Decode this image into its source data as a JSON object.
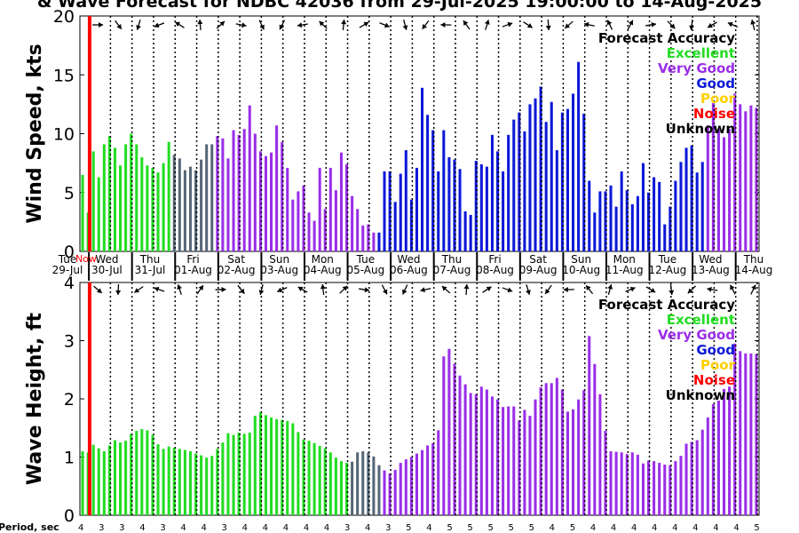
{
  "title": "& Wave Forecast for NDBC 42036 from 29-Jul-2025 19:00:00 to 14-Aug-2025",
  "period_label": "Period, sec",
  "legend": {
    "title": "Forecast Accuracy",
    "items": [
      {
        "label": "Excellent",
        "color": "#22dd22"
      },
      {
        "label": "Very Good",
        "color": "#9a2ee8"
      },
      {
        "label": "Good",
        "color": "#0b18d8"
      },
      {
        "label": "Poor",
        "color": "#ffd000"
      },
      {
        "label": "Noise",
        "color": "#ff0000"
      },
      {
        "label": "Unknown",
        "color": "#000000"
      }
    ]
  },
  "days": [
    {
      "dow": "Tue",
      "date": "29-Jul"
    },
    {
      "dow": "Wed",
      "date": "30-Jul"
    },
    {
      "dow": "Thu",
      "date": "31-Jul"
    },
    {
      "dow": "Fri",
      "date": "01-Aug"
    },
    {
      "dow": "Sat",
      "date": "02-Aug"
    },
    {
      "dow": "Sun",
      "date": "03-Aug"
    },
    {
      "dow": "Mon",
      "date": "04-Aug"
    },
    {
      "dow": "Tue",
      "date": "05-Aug"
    },
    {
      "dow": "Wed",
      "date": "06-Aug"
    },
    {
      "dow": "Thu",
      "date": "07-Aug"
    },
    {
      "dow": "Fri",
      "date": "08-Aug"
    },
    {
      "dow": "Sat",
      "date": "09-Aug"
    },
    {
      "dow": "Sun",
      "date": "10-Aug"
    },
    {
      "dow": "Mon",
      "date": "11-Aug"
    },
    {
      "dow": "Tue",
      "date": "12-Aug"
    },
    {
      "dow": "Wed",
      "date": "13-Aug"
    },
    {
      "dow": "Thu",
      "date": "14-Aug"
    }
  ],
  "now_label": "Now",
  "periods": [
    "4",
    "3",
    "3",
    "4",
    "3",
    "4",
    "4",
    "3",
    "4",
    "4",
    "4",
    "4",
    "4",
    "3",
    "4",
    "3",
    "5",
    "4",
    "5",
    "5",
    "5",
    "5",
    "5",
    "4",
    "5",
    "4",
    "4",
    "4",
    "4",
    "4",
    "4",
    "4",
    "4",
    "5"
  ],
  "chart_data": [
    {
      "type": "bar",
      "ylabel": "Wind Speed, kts",
      "ylim": [
        0,
        20
      ],
      "yticks": [
        "0",
        "5",
        "10",
        "15",
        "20"
      ],
      "x": "3-hourly steps from 29-Jul 19:00",
      "values": [
        6.5,
        3.3,
        8.5,
        6.3,
        9.1,
        9.8,
        8.8,
        7.3,
        9.1,
        10,
        9.1,
        8,
        7.3,
        7.1,
        6.7,
        7.5,
        9.3,
        8.2,
        7.9,
        6.9,
        7.2,
        6.9,
        7.8,
        9.1,
        9.1,
        9.8,
        9.6,
        7.9,
        10.3,
        9.9,
        10.4,
        12.4,
        10,
        8.5,
        8.1,
        8.4,
        10.7,
        9.3,
        7.1,
        4.4,
        5.1,
        5.6,
        3.3,
        2.6,
        7.1,
        3.6,
        7.1,
        5.2,
        8.4,
        7.4,
        4.7,
        3.6,
        2.2,
        2.3,
        1.6,
        1.6,
        6.8,
        6.8,
        4.2,
        6.6,
        8.6,
        4.4,
        7.1,
        13.9,
        11.6,
        10.3,
        6.8,
        10.3,
        8,
        7.8,
        7,
        3.4,
        3.1,
        7.7,
        7.4,
        7.2,
        9.9,
        8.5,
        6.8,
        9.9,
        11.2,
        11.8,
        10.2,
        12.5,
        13,
        14,
        11,
        12.7,
        8.6,
        11.8,
        12.1,
        13.4,
        16.1,
        11.7,
        6,
        3.3,
        5.1,
        5.1,
        5.6,
        3.8,
        6.8,
        5.2,
        4,
        4.7,
        7.5,
        5,
        6.3,
        5.9,
        2.3,
        3.8,
        6,
        7.6,
        8.8,
        9,
        6.7,
        7.6,
        10.7,
        12.6,
        10.4,
        9.7,
        10.4,
        13.4,
        12.5,
        11.9,
        12.4,
        12.2
      ],
      "colors_by_index": [
        [
          0,
          16,
          "Excellent"
        ],
        [
          17,
          24,
          "Unknown"
        ],
        [
          25,
          54,
          "Very Good"
        ],
        [
          55,
          115,
          "Good"
        ],
        [
          116,
          125,
          "Very Good"
        ]
      ]
    },
    {
      "type": "bar",
      "ylabel": "Wave Height, ft",
      "ylim": [
        0,
        4
      ],
      "yticks": [
        "0",
        "1",
        "2",
        "3",
        "4"
      ],
      "x": "3-hourly steps from 29-Jul 19:00",
      "values": [
        1.1,
        1.08,
        1.21,
        1.15,
        1.1,
        1.2,
        1.29,
        1.25,
        1.28,
        1.4,
        1.45,
        1.48,
        1.46,
        1.38,
        1.22,
        1.14,
        1.18,
        1.16,
        1.14,
        1.12,
        1.1,
        1.06,
        1.03,
        0.99,
        1.02,
        1.14,
        1.25,
        1.41,
        1.38,
        1.42,
        1.4,
        1.42,
        1.71,
        1.77,
        1.72,
        1.68,
        1.65,
        1.64,
        1.62,
        1.58,
        1.43,
        1.3,
        1.28,
        1.24,
        1.19,
        1.15,
        1.08,
        0.99,
        0.93,
        0.9,
        0.92,
        1.08,
        1.1,
        1.08,
        1.01,
        0.86,
        0.77,
        0.72,
        0.78,
        0.9,
        0.96,
        1,
        1.06,
        1.12,
        1.2,
        1.24,
        1.46,
        2.73,
        2.86,
        2.6,
        2.4,
        2.25,
        2.1,
        2.08,
        2.21,
        2.16,
        2.04,
        1.99,
        1.86,
        1.87,
        1.87,
        1.63,
        1.81,
        1.71,
        1.99,
        2.2,
        2.27,
        2.27,
        2.36,
        2.16,
        1.78,
        1.82,
        1.99,
        2.15,
        3.08,
        2.6,
        2.08,
        1.45,
        1.1,
        1.09,
        1.08,
        1.05,
        1.08,
        1.04,
        0.89,
        0.94,
        0.93,
        0.9,
        0.87,
        0.86,
        0.93,
        1.02,
        1.23,
        1.26,
        1.29,
        1.47,
        1.68,
        1.91,
        1.97,
        2.17,
        2.21,
        2.95,
        2.82,
        2.78,
        2.78,
        2.77
      ],
      "colors_by_index": [
        [
          0,
          49,
          "Excellent"
        ],
        [
          50,
          55,
          "Unknown"
        ],
        [
          56,
          125,
          "Very Good"
        ]
      ]
    }
  ]
}
